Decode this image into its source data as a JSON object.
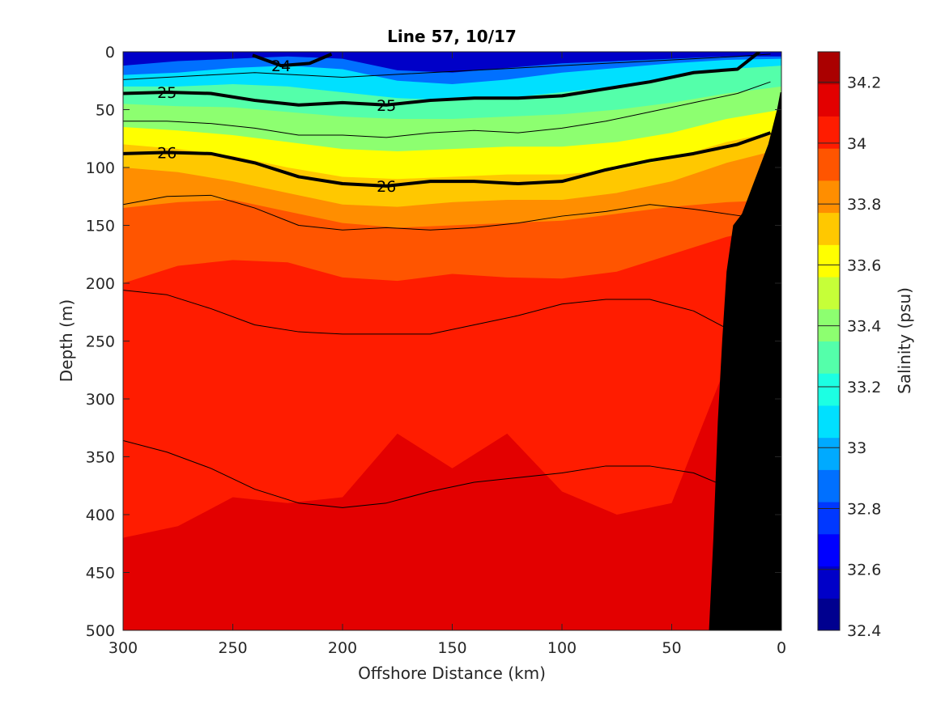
{
  "chart_data": {
    "type": "contour",
    "title": "Line 57, 10/17",
    "xlabel": "Offshore Distance (km)",
    "ylabel": "Depth (m)",
    "colorbar_label": "Salinity (psu)",
    "x_reversed": true,
    "y_reversed": true,
    "xlim": [
      300,
      0
    ],
    "ylim": [
      0,
      500
    ],
    "xticks": [
      "300",
      "250",
      "200",
      "150",
      "100",
      "50",
      "0"
    ],
    "yticks": [
      "0",
      "50",
      "100",
      "150",
      "200",
      "250",
      "300",
      "350",
      "400",
      "450",
      "500"
    ],
    "colorbar_range": [
      32.4,
      34.3
    ],
    "colorbar_ticks": [
      "32.4",
      "32.6",
      "32.8",
      "33",
      "33.2",
      "33.4",
      "33.6",
      "33.8",
      "34",
      "34.2"
    ],
    "colormap": [
      "#00008f",
      "#0000c8",
      "#0000ff",
      "#0038ff",
      "#0070ff",
      "#00aaff",
      "#00e0ff",
      "#1cffe3",
      "#54ffaa",
      "#8dff70",
      "#c6ff38",
      "#ffff00",
      "#ffc800",
      "#ff8e00",
      "#ff5500",
      "#ff1c00",
      "#e30000",
      "#aa0000"
    ],
    "salinity_layers": [
      {
        "value": 32.8,
        "depth": [
          12,
          8,
          6,
          4,
          6,
          16,
          18,
          14,
          10,
          8,
          6,
          4,
          4
        ]
      },
      {
        "value": 33.0,
        "depth": [
          20,
          18,
          14,
          12,
          15,
          25,
          28,
          24,
          18,
          14,
          10,
          7,
          6
        ]
      },
      {
        "value": 33.2,
        "depth": [
          30,
          30,
          28,
          30,
          35,
          40,
          42,
          40,
          35,
          30,
          22,
          15,
          12
        ]
      },
      {
        "value": 33.4,
        "depth": [
          45,
          47,
          48,
          52,
          56,
          58,
          58,
          56,
          54,
          50,
          44,
          36,
          30
        ]
      },
      {
        "value": 33.6,
        "depth": [
          65,
          68,
          72,
          78,
          84,
          86,
          84,
          82,
          82,
          78,
          70,
          58,
          50
        ]
      },
      {
        "value": 33.7,
        "depth": [
          80,
          84,
          90,
          100,
          108,
          110,
          108,
          106,
          106,
          102,
          92,
          78,
          68
        ]
      },
      {
        "value": 33.8,
        "depth": [
          100,
          104,
          112,
          122,
          132,
          134,
          130,
          128,
          128,
          122,
          112,
          96,
          84
        ]
      },
      {
        "value": 33.9,
        "depth": [
          135,
          130,
          128,
          138,
          148,
          152,
          150,
          148,
          146,
          140,
          134,
          130,
          128
        ]
      },
      {
        "value": 34.0,
        "depth": [
          200,
          185,
          180,
          182,
          195,
          198,
          192,
          195,
          196,
          190,
          175,
          160,
          150
        ]
      },
      {
        "value": 34.1,
        "depth": [
          420,
          410,
          385,
          390,
          385,
          330,
          360,
          330,
          380,
          400,
          390,
          270,
          240
        ]
      }
    ],
    "density_contours": [
      {
        "level": "24",
        "label": "24",
        "emphasis": true,
        "x": [
          241,
          228,
          215,
          205
        ],
        "depth": [
          3,
          12,
          10,
          2
        ]
      },
      {
        "level": "25",
        "label": "25",
        "emphasis": true,
        "x": [
          300,
          280,
          260,
          240,
          220,
          200,
          180,
          160,
          140,
          120,
          100,
          80,
          60,
          40,
          20,
          10
        ],
        "depth": [
          36,
          35,
          36,
          42,
          46,
          44,
          46,
          42,
          40,
          40,
          38,
          32,
          26,
          18,
          15,
          0
        ]
      },
      {
        "level": "26",
        "label": "26",
        "emphasis": true,
        "x": [
          300,
          280,
          260,
          240,
          220,
          200,
          180,
          160,
          140,
          120,
          100,
          80,
          60,
          40,
          20,
          5
        ],
        "depth": [
          88,
          87,
          88,
          96,
          108,
          114,
          116,
          112,
          112,
          114,
          112,
          102,
          94,
          88,
          80,
          70
        ]
      },
      {
        "level": "26.5",
        "label": "",
        "emphasis": false,
        "x": [
          300,
          280,
          260,
          240,
          220,
          200,
          180,
          160,
          140,
          120,
          100,
          80,
          60,
          40,
          18
        ],
        "depth": [
          132,
          125,
          124,
          135,
          150,
          154,
          152,
          154,
          152,
          148,
          142,
          138,
          132,
          136,
          142
        ]
      },
      {
        "level": "26.8",
        "label": "",
        "emphasis": false,
        "x": [
          300,
          280,
          260,
          240,
          220,
          200,
          180,
          160,
          140,
          120,
          100,
          80,
          60,
          40,
          26
        ],
        "depth": [
          206,
          210,
          222,
          236,
          242,
          244,
          244,
          244,
          236,
          228,
          218,
          214,
          214,
          224,
          238
        ]
      },
      {
        "level": "27",
        "label": "",
        "emphasis": false,
        "x": [
          300,
          280,
          260,
          240,
          220,
          200,
          180,
          160,
          140,
          120,
          100,
          80,
          60,
          40,
          30
        ],
        "depth": [
          336,
          346,
          360,
          378,
          390,
          394,
          390,
          380,
          372,
          368,
          364,
          358,
          358,
          364,
          372
        ]
      },
      {
        "level": "24.5",
        "label": "",
        "emphasis": false,
        "x": [
          300,
          280,
          260,
          240,
          220,
          200,
          180,
          160,
          140,
          120,
          100,
          80,
          60,
          40,
          20,
          5
        ],
        "depth": [
          24,
          22,
          20,
          18,
          20,
          22,
          20,
          18,
          16,
          14,
          12,
          10,
          8,
          6,
          4,
          2
        ]
      },
      {
        "level": "25.5",
        "label": "",
        "emphasis": false,
        "x": [
          300,
          280,
          260,
          240,
          220,
          200,
          180,
          160,
          140,
          120,
          100,
          80,
          60,
          40,
          20,
          5
        ],
        "depth": [
          60,
          60,
          62,
          66,
          72,
          72,
          74,
          70,
          68,
          70,
          66,
          60,
          52,
          44,
          36,
          26
        ]
      }
    ],
    "bathymetry": {
      "color": "#000000",
      "x": [
        33,
        31,
        29,
        27,
        25,
        22,
        18,
        12,
        6,
        2,
        0.5
      ],
      "depth": [
        500,
        420,
        320,
        250,
        190,
        150,
        140,
        110,
        80,
        50,
        35
      ]
    }
  }
}
